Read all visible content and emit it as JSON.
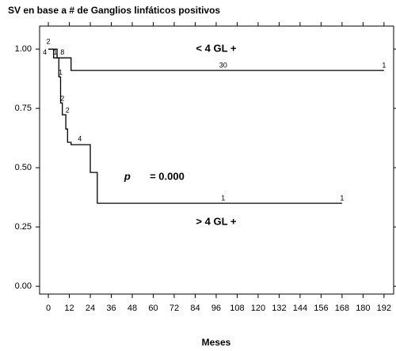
{
  "chart_data": {
    "type": "step",
    "title": "SV en base a # de Ganglios linfáticos positivos",
    "x_label": "Meses",
    "xlim": [
      -5,
      197.5
    ],
    "ylim": [
      -0.033,
      1.097
    ],
    "xticks": [
      0,
      12,
      24,
      36,
      48,
      60,
      72,
      84,
      96,
      108,
      120,
      132,
      144,
      156,
      168,
      180,
      192
    ],
    "yticks": [
      {
        "value": 0,
        "label": "0.00"
      },
      {
        "value": 0.25,
        "label": "0.25"
      },
      {
        "value": 0.5,
        "label": "0.50"
      },
      {
        "value": 0.75,
        "label": "0.75"
      },
      {
        "value": 1,
        "label": "1.00"
      }
    ],
    "series": [
      {
        "name": "< 4 GL +",
        "color": "#000000",
        "x": [
          0,
          3,
          13,
          192
        ],
        "values": [
          1.0,
          0.963,
          0.91,
          0.91
        ]
      },
      {
        "name": "> 4 GL +",
        "color": "#000000",
        "x": [
          0,
          5,
          6,
          7,
          8,
          10,
          11,
          13,
          24,
          28,
          168
        ],
        "values": [
          1.0,
          0.963,
          0.883,
          0.773,
          0.723,
          0.663,
          0.607,
          0.597,
          0.48,
          0.35,
          0.35
        ]
      }
    ],
    "annotations": [
      {
        "text": "< 4 GL +",
        "x": 96,
        "y": 1.0,
        "size": "large"
      },
      {
        "text": "> 4 GL +",
        "x": 96,
        "y": 0.27,
        "size": "large"
      },
      {
        "text": "p",
        "x": 47,
        "y": 0.46,
        "size": "large",
        "italic": true
      },
      {
        "text": "= 0.000",
        "x": 58,
        "y": 0.46,
        "size": "large"
      },
      {
        "text": "2",
        "x": 0,
        "y": 1.03
      },
      {
        "text": "4",
        "x": -2,
        "y": 0.985
      },
      {
        "text": "1",
        "x": 4,
        "y": 0.985
      },
      {
        "text": "8",
        "x": 8,
        "y": 0.985
      },
      {
        "text": "30",
        "x": 100,
        "y": 0.93
      },
      {
        "text": "1",
        "x": 192,
        "y": 0.93
      },
      {
        "text": "1",
        "x": 7,
        "y": 0.9
      },
      {
        "text": "2",
        "x": 8,
        "y": 0.79
      },
      {
        "text": "2",
        "x": 11,
        "y": 0.74
      },
      {
        "text": "4",
        "x": 18,
        "y": 0.62
      },
      {
        "text": "1",
        "x": 100,
        "y": 0.37
      },
      {
        "text": "1",
        "x": 168,
        "y": 0.37
      }
    ]
  }
}
